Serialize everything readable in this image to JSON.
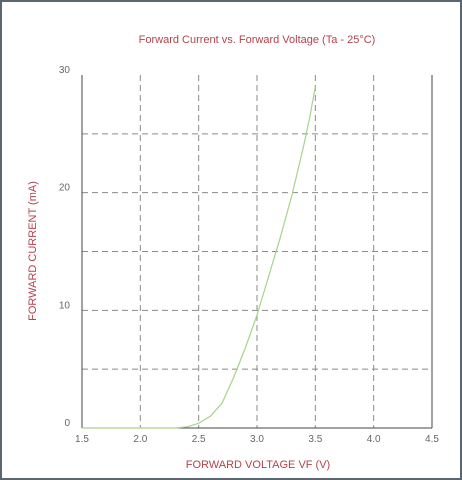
{
  "chart_data": {
    "type": "line",
    "title": "Forward Current vs. Forward Voltage (Ta - 25°C)",
    "xlabel": "FORWARD VOLTAGE VF (V)",
    "ylabel": "FORWARD CURRENT (mA)",
    "xlim": [
      1.5,
      4.5
    ],
    "ylim": [
      0,
      30
    ],
    "xticks": [
      "1.5",
      "2.0",
      "2.5",
      "3.0",
      "3.5",
      "4.0",
      "4.5"
    ],
    "yticks": [
      "0",
      "10",
      "20",
      "30"
    ],
    "grid": true,
    "series": [
      {
        "x": [
          1.5,
          2.3,
          2.4,
          2.5,
          2.6,
          2.7,
          2.8,
          2.9,
          3.0,
          3.1,
          3.2,
          3.3,
          3.4,
          3.45,
          3.5
        ],
        "y": [
          0,
          0,
          0.1,
          0.4,
          1.0,
          2.1,
          4.3,
          6.8,
          9.6,
          12.9,
          16.2,
          19.8,
          24.0,
          26.3,
          29.0
        ]
      }
    ],
    "colors": {
      "text": "#b5424d",
      "tick_text": "#666666",
      "grid": "#8a8a8a",
      "axis": "#444444",
      "line": "#a6d38a",
      "border": "#5a6672"
    }
  }
}
